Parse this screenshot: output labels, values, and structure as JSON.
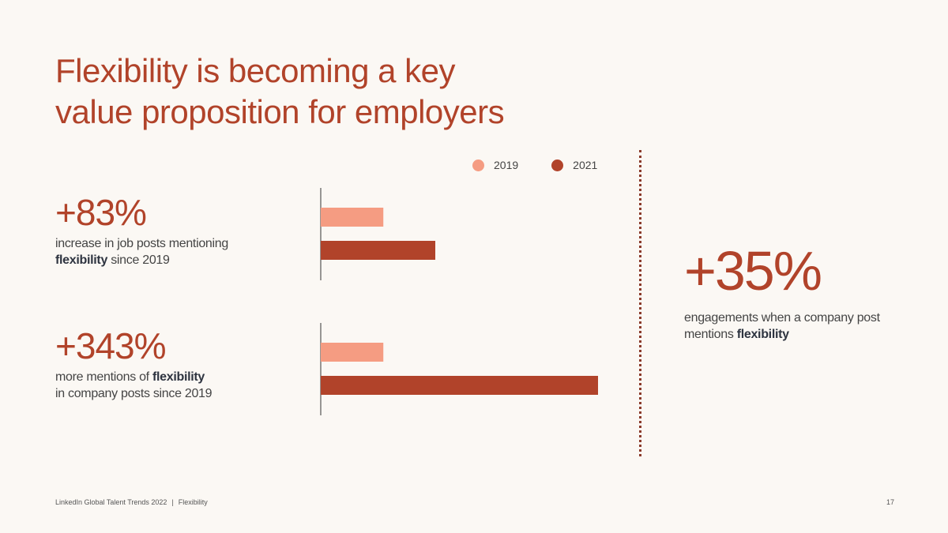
{
  "title_line1": "Flexibility is becoming a key",
  "title_line2": "value proposition for employers",
  "stats": {
    "job_posts": {
      "value": "+83%",
      "text_before": "increase in job posts mentioning",
      "bold": "flexibility",
      "text_after": "since 2019"
    },
    "company_posts": {
      "value": "+343%",
      "text_before": "more mentions of",
      "bold": "flexibility",
      "text_after": "in company posts since 2019"
    },
    "engagements": {
      "value": "+35%",
      "text_before": "engagements when a company post mentions",
      "bold": "flexibility"
    }
  },
  "chart_data": {
    "type": "bar",
    "orientation": "horizontal",
    "groups": [
      "job_posts",
      "company_posts"
    ],
    "series": [
      {
        "name": "2019",
        "color": "#f59c82",
        "values": [
          1.0,
          1.0
        ]
      },
      {
        "name": "2021",
        "color": "#b1432a",
        "values": [
          1.83,
          4.43
        ]
      }
    ],
    "xlim": [
      0,
      4.43
    ],
    "legend": "top"
  },
  "footer": {
    "source": "LinkedIn Global Talent Trends 2022",
    "section": "Flexibility",
    "page": "17"
  }
}
